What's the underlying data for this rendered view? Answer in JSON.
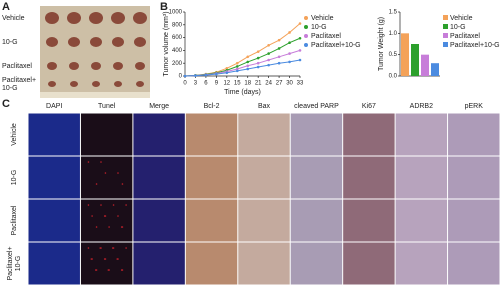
{
  "panels": {
    "A": {
      "label": "A",
      "groups": [
        [
          "Vehicle"
        ],
        [
          "10-G"
        ],
        [
          "Paclitaxel"
        ],
        [
          "Paclitaxel+",
          "10-G"
        ]
      ]
    },
    "B": {
      "label": "B"
    },
    "C": {
      "label": "C",
      "columns": [
        "DAPI",
        "Tunel",
        "Merge",
        "Bcl-2",
        "Bax",
        "cleaved PARP",
        "Ki67",
        "ADRB2",
        "pERK"
      ],
      "rows": [
        [
          "Vehicle"
        ],
        [
          "10-G"
        ],
        [
          "Paclitaxel"
        ],
        [
          "Paclitaxel+",
          "10-G"
        ]
      ]
    }
  },
  "chart_data": [
    {
      "type": "line",
      "xlabel": "Time (days)",
      "ylabel": "Tumor volume (mm³)",
      "x": [
        0,
        3,
        6,
        9,
        12,
        15,
        18,
        21,
        24,
        27,
        30,
        33
      ],
      "xlim": [
        0,
        33
      ],
      "xticks": [
        0,
        3,
        6,
        9,
        12,
        15,
        18,
        21,
        24,
        27,
        30,
        33
      ],
      "ylim": [
        0,
        1000
      ],
      "yticks": [
        0,
        200,
        400,
        600,
        800,
        1000
      ],
      "series": [
        {
          "name": "Vehicle",
          "color": "#f4a259",
          "values": [
            0,
            10,
            30,
            60,
            120,
            200,
            300,
            380,
            480,
            560,
            680,
            820
          ]
        },
        {
          "name": "10-G",
          "color": "#2ca02c",
          "values": [
            0,
            10,
            25,
            50,
            90,
            150,
            220,
            280,
            350,
            430,
            520,
            590
          ]
        },
        {
          "name": "Paclitaxel",
          "color": "#c77dd9",
          "values": [
            0,
            8,
            20,
            40,
            70,
            110,
            160,
            200,
            250,
            300,
            350,
            400
          ]
        },
        {
          "name": "Paclitaxel+10-G",
          "color": "#4b8be0",
          "values": [
            0,
            5,
            15,
            30,
            50,
            80,
            110,
            140,
            170,
            200,
            220,
            250
          ]
        }
      ]
    },
    {
      "type": "bar",
      "ylabel": "Tumor Weight (g)",
      "ylim": [
        0,
        1.5
      ],
      "yticks": [
        {
          "value": 0,
          "label": "0.0"
        },
        {
          "value": 0.5,
          "label": "0.5"
        },
        {
          "value": 1,
          "label": "1.0"
        },
        {
          "value": 1.5,
          "label": "1.5"
        }
      ],
      "series": [
        {
          "name": "Vehicle",
          "color": "#f4a259",
          "values": [
            1.0
          ]
        },
        {
          "name": "10-G",
          "color": "#2ca02c",
          "values": [
            0.75
          ]
        },
        {
          "name": "Paclitaxel",
          "color": "#c77dd9",
          "values": [
            0.5
          ]
        },
        {
          "name": "Paclitaxel+10-G",
          "color": "#4b8be0",
          "values": [
            0.3
          ]
        }
      ]
    }
  ]
}
